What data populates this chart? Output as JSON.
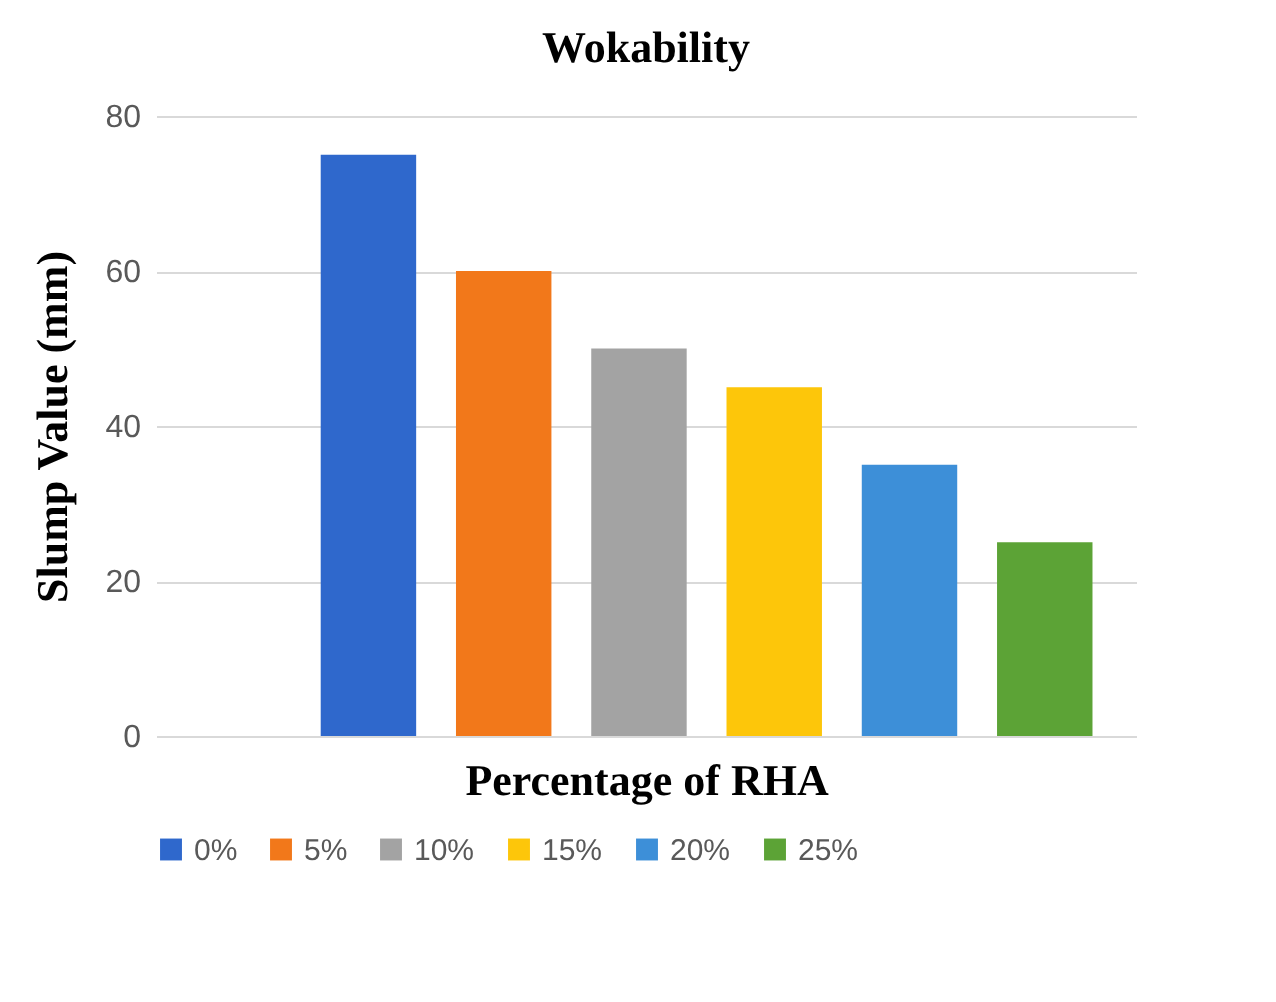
{
  "chart_data": {
    "type": "bar",
    "title": "Wokability",
    "xlabel": "Percentage of RHA",
    "ylabel": "Slump Value (mm)",
    "categories": [
      null
    ],
    "series": [
      {
        "name": "0%",
        "color": "#2f68cc",
        "values": [
          75
        ]
      },
      {
        "name": "5%",
        "color": "#f2781a",
        "values": [
          60
        ]
      },
      {
        "name": "10%",
        "color": "#a3a3a3",
        "values": [
          50
        ]
      },
      {
        "name": "15%",
        "color": "#fdc60a",
        "values": [
          45
        ]
      },
      {
        "name": "20%",
        "color": "#3d8fd8",
        "values": [
          35
        ]
      },
      {
        "name": "25%",
        "color": "#5ca336",
        "values": [
          25
        ]
      }
    ],
    "ylim": [
      0,
      80
    ],
    "yticks": [
      0,
      20,
      40,
      60,
      80
    ],
    "grid": "y",
    "legend": "bottom",
    "tick_labels": "y"
  }
}
